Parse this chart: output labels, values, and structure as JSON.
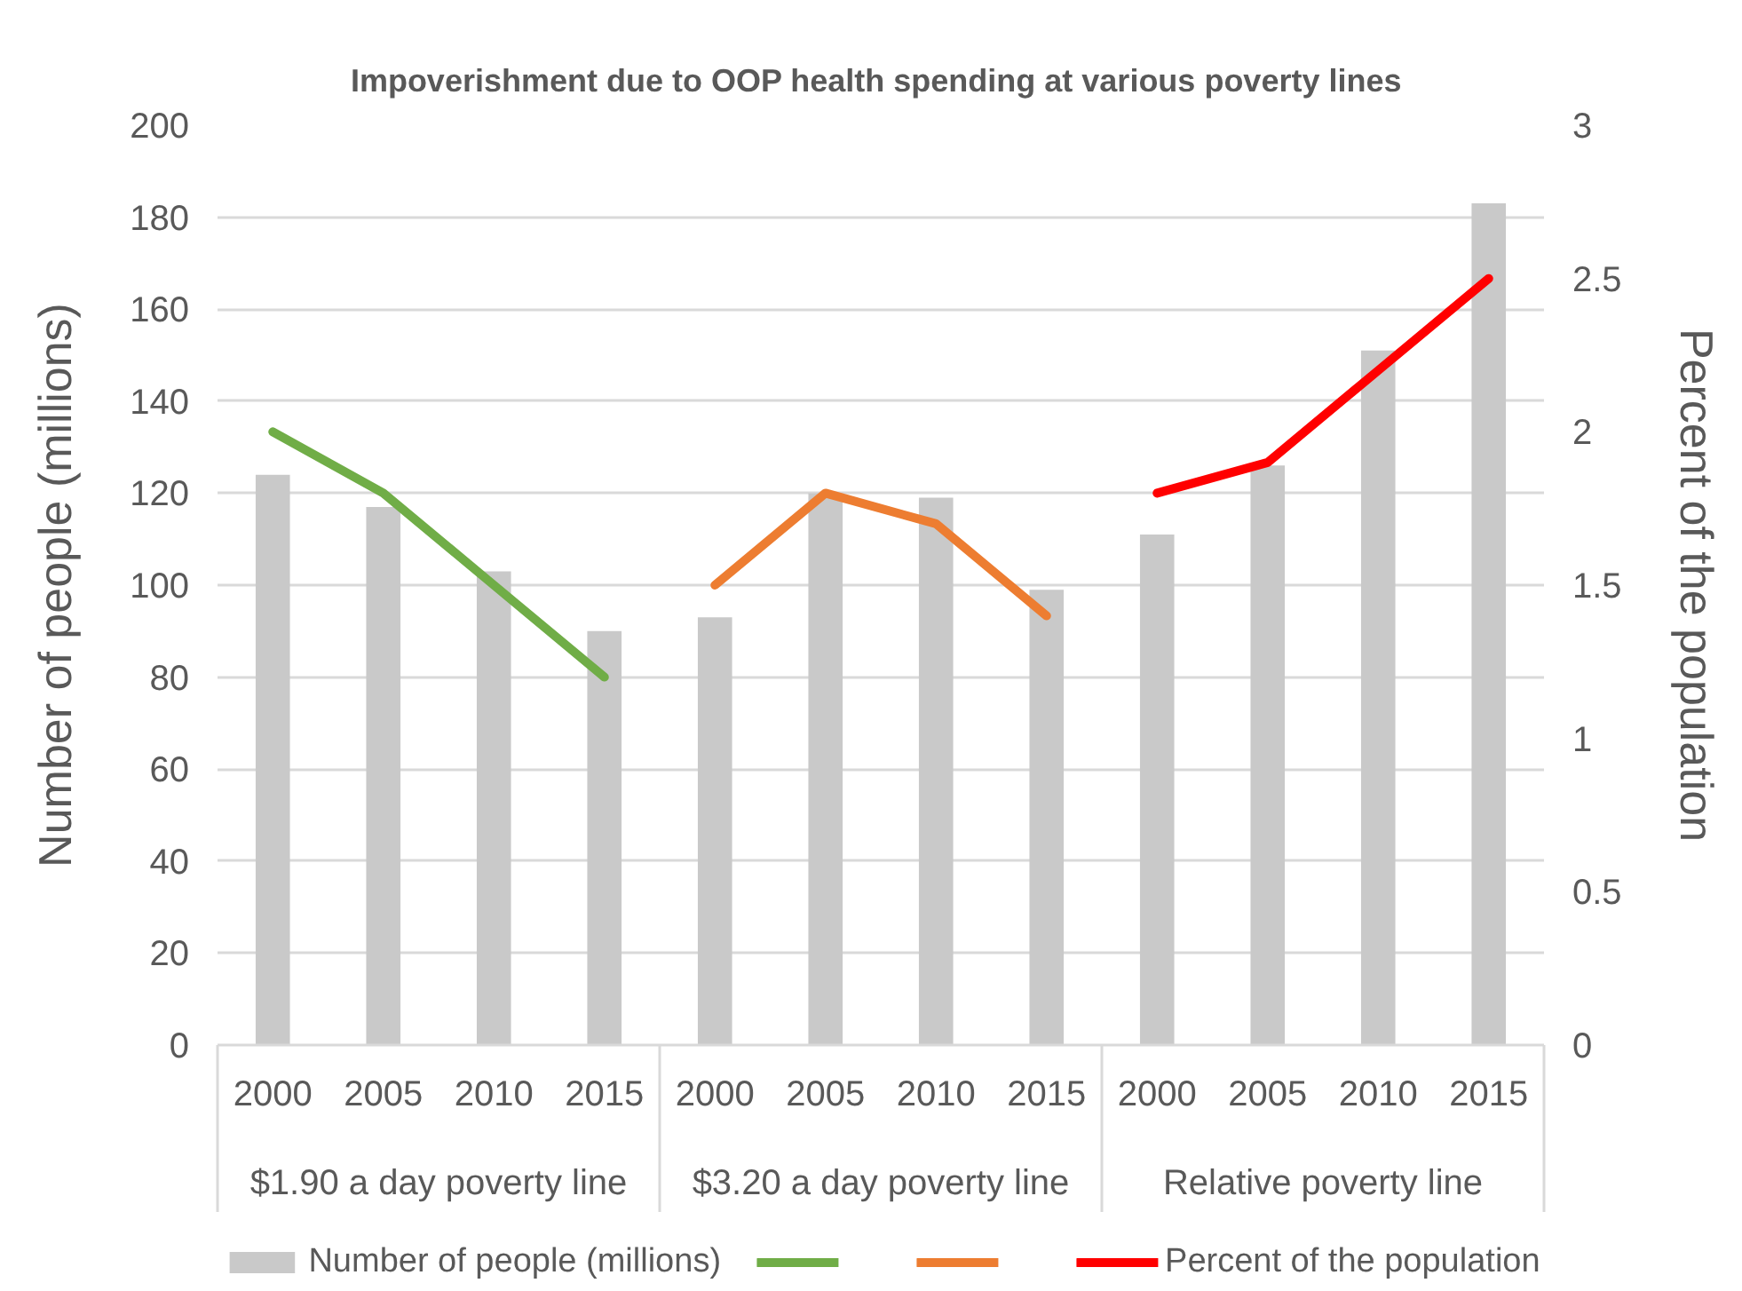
{
  "chart_data": {
    "type": "bar",
    "title": "Impoverishment due to OOP health spending at various poverty  lines",
    "ylabel": "Number of people (millions)",
    "y2label": "Percent of the population",
    "categories": [
      "2000",
      "2005",
      "2010",
      "2015",
      "2000",
      "2005",
      "2010",
      "2015",
      "2000",
      "2005",
      "2010",
      "2015"
    ],
    "annotations": [
      "$1.90 a day poverty line",
      "$3.20 a day poverty line",
      "Relative poverty line"
    ],
    "series": [
      {
        "name": "Number of people (millions)",
        "color": "#c9c9c9",
        "values": [
          124,
          117,
          103,
          90,
          93,
          120,
          119,
          99,
          111,
          126,
          151,
          183
        ]
      },
      {
        "type": "line",
        "axis": "y2",
        "color": "#70ad47",
        "values": [
          2.0,
          1.8,
          1.5,
          1.2,
          null,
          null,
          null,
          null,
          null,
          null,
          null,
          null
        ]
      },
      {
        "type": "line",
        "axis": "y2",
        "color": "#ed7d31",
        "values": [
          null,
          null,
          null,
          null,
          1.5,
          1.8,
          1.7,
          1.4,
          null,
          null,
          null,
          null
        ]
      },
      {
        "name": "Percent of the population",
        "type": "line",
        "axis": "y2",
        "color": "#ff0000",
        "values": [
          null,
          null,
          null,
          null,
          null,
          null,
          null,
          null,
          1.8,
          1.9,
          2.2,
          2.5
        ]
      }
    ],
    "ylim": [
      0,
      200
    ],
    "yticks": [
      0,
      20,
      40,
      60,
      80,
      100,
      120,
      140,
      160,
      180,
      200
    ],
    "y2lim": [
      0,
      3
    ],
    "y2ticks": [
      0,
      0.5,
      1,
      1.5,
      2,
      2.5,
      3
    ],
    "grid": "y",
    "legend": "bottom"
  }
}
